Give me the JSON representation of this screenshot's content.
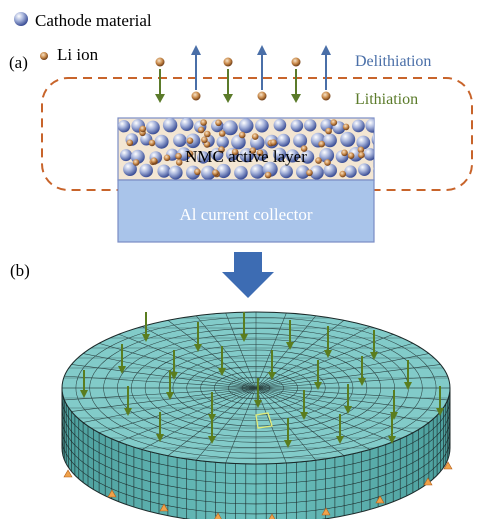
{
  "legend": {
    "cathode_label": "Cathode material",
    "li_label": "Li ion"
  },
  "panel_a": {
    "label": "(a)",
    "delithiation_label": "Delithiation",
    "lithiation_label": "Lithiation",
    "active_layer_label": "NMC active layer",
    "collector_label": "Al current collector"
  },
  "panel_b": {
    "label": "(b)"
  },
  "colors": {
    "delithiation": "#4a6fa8",
    "lithiation": "#5b7b2a",
    "dashed_box": "#c8642b",
    "collector": "#a9c4ea",
    "mesh_top": "#7fc8c6",
    "mesh_side": "#5fb3b1",
    "mesh_line": "#1c2a2a",
    "big_arrow": "#3d6cb3"
  }
}
